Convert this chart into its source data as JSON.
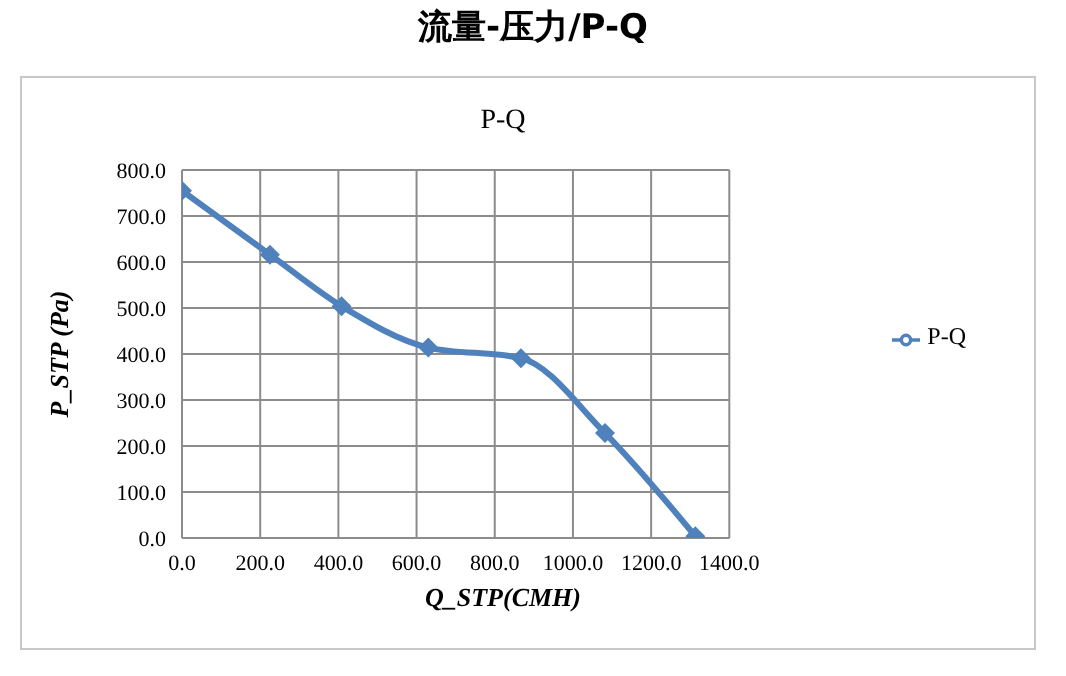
{
  "chart_data": {
    "type": "line",
    "title": "流量-压力/P-Q",
    "subtitle": "P-Q",
    "xlabel": "Q_STP(CMH)",
    "ylabel": "P_STP (Pa)",
    "x": [
      0,
      225,
      408,
      630,
      867,
      1082,
      1313
    ],
    "series": [
      {
        "name": "P-Q",
        "color": "#4f81bd",
        "values": [
          755,
          616,
          504,
          414,
          391,
          228,
          4
        ]
      }
    ],
    "xlim": [
      0,
      1400
    ],
    "xticks": [
      {
        "value": 0,
        "label": "0.0"
      },
      {
        "value": 200,
        "label": "200.0"
      },
      {
        "value": 400,
        "label": "400.0"
      },
      {
        "value": 600,
        "label": "600.0"
      },
      {
        "value": 800,
        "label": "800.0"
      },
      {
        "value": 1000,
        "label": "1000.0"
      },
      {
        "value": 1200,
        "label": "1200.0"
      },
      {
        "value": 1400,
        "label": "1400.0"
      }
    ],
    "ylim": [
      0,
      800
    ],
    "yticks": [
      {
        "value": 0,
        "label": "0.0"
      },
      {
        "value": 100,
        "label": "100.0"
      },
      {
        "value": 200,
        "label": "200.0"
      },
      {
        "value": 300,
        "label": "300.0"
      },
      {
        "value": 400,
        "label": "400.0"
      },
      {
        "value": 500,
        "label": "500.0"
      },
      {
        "value": 600,
        "label": "600.0"
      },
      {
        "value": 700,
        "label": "700.0"
      },
      {
        "value": 800,
        "label": "800.0"
      }
    ],
    "grid": true,
    "legend": "right",
    "marker": "diamond",
    "line_style": "solid"
  }
}
